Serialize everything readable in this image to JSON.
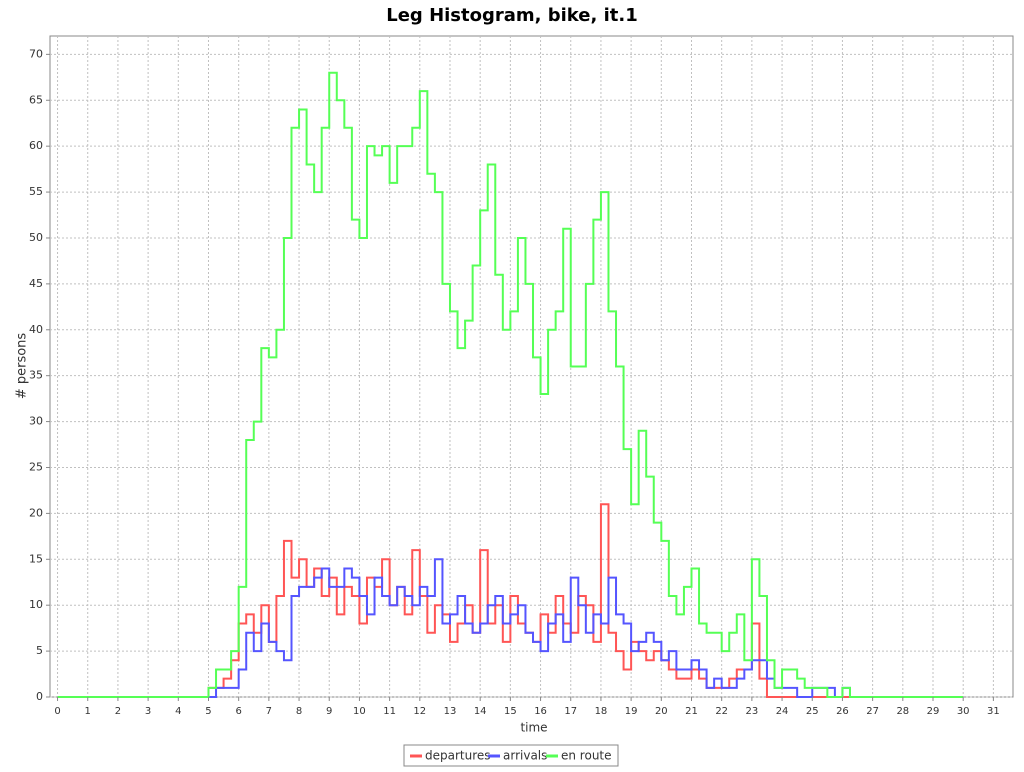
{
  "chart_data": {
    "type": "step",
    "title": "Leg Histogram, bike, it.1",
    "xlabel": "time",
    "ylabel": "# persons",
    "xlim": [
      -0.25,
      31.65
    ],
    "ylim": [
      0,
      72
    ],
    "xticks": [
      0,
      1,
      2,
      3,
      4,
      5,
      6,
      7,
      8,
      9,
      10,
      11,
      12,
      13,
      14,
      15,
      16,
      17,
      18,
      19,
      20,
      21,
      22,
      23,
      24,
      25,
      26,
      27,
      28,
      29,
      30,
      31
    ],
    "yticks": [
      0,
      5,
      10,
      15,
      20,
      25,
      30,
      35,
      40,
      45,
      50,
      55,
      60,
      65,
      70
    ],
    "grid": true,
    "legend": "bottom",
    "x": [
      0,
      5,
      5.25,
      5.5,
      5.75,
      6,
      6.25,
      6.5,
      6.75,
      7,
      7.25,
      7.5,
      7.75,
      8,
      8.25,
      8.5,
      8.75,
      9,
      9.25,
      9.5,
      9.75,
      10,
      10.25,
      10.5,
      10.75,
      11,
      11.25,
      11.5,
      11.75,
      12,
      12.25,
      12.5,
      12.75,
      13,
      13.25,
      13.5,
      13.75,
      14,
      14.25,
      14.5,
      14.75,
      15,
      15.25,
      15.5,
      15.75,
      16,
      16.25,
      16.5,
      16.75,
      17,
      17.25,
      17.5,
      17.75,
      18,
      18.25,
      18.5,
      18.75,
      19,
      19.25,
      19.5,
      19.75,
      20,
      20.25,
      20.5,
      20.75,
      21,
      21.25,
      21.5,
      21.75,
      22,
      22.25,
      22.5,
      22.75,
      23,
      23.25,
      23.5,
      23.75,
      24,
      24.25,
      24.5,
      24.75,
      25,
      25.25,
      25.5,
      25.75,
      26,
      26.25,
      26.5,
      30
    ],
    "series": [
      {
        "name": "departures",
        "color": "#ff5555",
        "values": [
          0,
          1,
          1,
          2,
          4,
          8,
          9,
          7,
          10,
          6,
          11,
          17,
          13,
          15,
          12,
          14,
          11,
          13,
          9,
          12,
          11,
          8,
          13,
          12,
          15,
          10,
          12,
          9,
          16,
          11,
          7,
          10,
          9,
          6,
          8,
          10,
          7,
          16,
          8,
          10,
          6,
          11,
          8,
          7,
          6,
          9,
          7,
          11,
          8,
          7,
          11,
          10,
          6,
          21,
          7,
          5,
          3,
          6,
          5,
          4,
          5,
          4,
          3,
          2,
          2,
          3,
          2,
          1,
          1,
          1,
          2,
          3,
          3,
          8,
          2,
          0,
          0,
          0,
          0,
          0,
          0,
          0,
          0,
          0,
          0,
          0,
          0,
          0,
          0
        ]
      },
      {
        "name": "arrivals",
        "color": "#5555ff",
        "values": [
          0,
          0,
          1,
          1,
          1,
          3,
          7,
          5,
          8,
          6,
          5,
          4,
          11,
          12,
          12,
          13,
          14,
          12,
          12,
          14,
          13,
          11,
          9,
          13,
          11,
          10,
          12,
          11,
          10,
          12,
          11,
          15,
          8,
          9,
          11,
          8,
          7,
          8,
          10,
          11,
          8,
          9,
          10,
          7,
          6,
          5,
          8,
          9,
          6,
          13,
          10,
          7,
          9,
          8,
          13,
          9,
          8,
          5,
          6,
          7,
          6,
          4,
          5,
          3,
          3,
          4,
          3,
          1,
          2,
          1,
          1,
          2,
          3,
          4,
          4,
          2,
          1,
          1,
          1,
          0,
          0,
          1,
          1,
          1,
          0,
          1,
          0,
          0,
          0
        ]
      },
      {
        "name": "en route",
        "color": "#55ff55",
        "values": [
          0,
          1,
          3,
          3,
          5,
          12,
          28,
          30,
          38,
          37,
          40,
          50,
          62,
          64,
          58,
          55,
          62,
          68,
          65,
          62,
          52,
          50,
          60,
          59,
          60,
          56,
          60,
          60,
          62,
          66,
          57,
          55,
          45,
          42,
          38,
          41,
          47,
          53,
          58,
          46,
          40,
          42,
          50,
          45,
          37,
          33,
          40,
          42,
          51,
          36,
          36,
          45,
          52,
          55,
          42,
          36,
          27,
          21,
          29,
          24,
          19,
          17,
          11,
          9,
          12,
          14,
          8,
          7,
          7,
          5,
          7,
          9,
          4,
          15,
          11,
          4,
          1,
          3,
          3,
          2,
          1,
          1,
          1,
          0,
          0,
          1,
          0,
          0,
          0
        ]
      }
    ]
  }
}
